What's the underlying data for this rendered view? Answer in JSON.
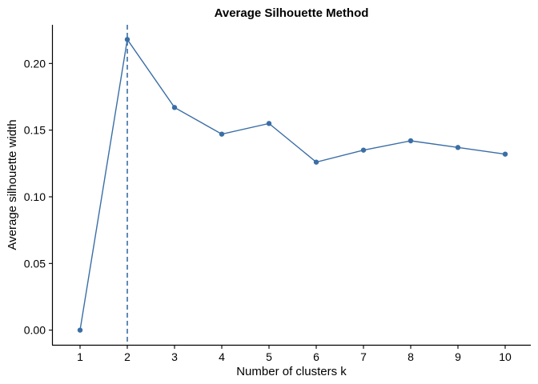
{
  "chart_data": {
    "type": "line",
    "title": "Average Silhouette Method",
    "xlabel": "Number of clusters k",
    "ylabel": "Average silhouette width",
    "categories": [
      "1",
      "2",
      "3",
      "4",
      "5",
      "6",
      "7",
      "8",
      "9",
      "10"
    ],
    "series": [
      {
        "values": [
          0.0,
          0.218,
          0.167,
          0.147,
          0.155,
          0.126,
          0.135,
          0.142,
          0.137,
          0.132
        ]
      }
    ],
    "y_ticks": [
      "0.00",
      "0.05",
      "0.10",
      "0.15",
      "0.20"
    ],
    "ylim": [
      -0.011,
      0.229
    ],
    "optimal_k": 2,
    "grid": false,
    "colors": {
      "series": "#3a6ea5",
      "axis": "#000000",
      "background": "#ffffff"
    }
  }
}
